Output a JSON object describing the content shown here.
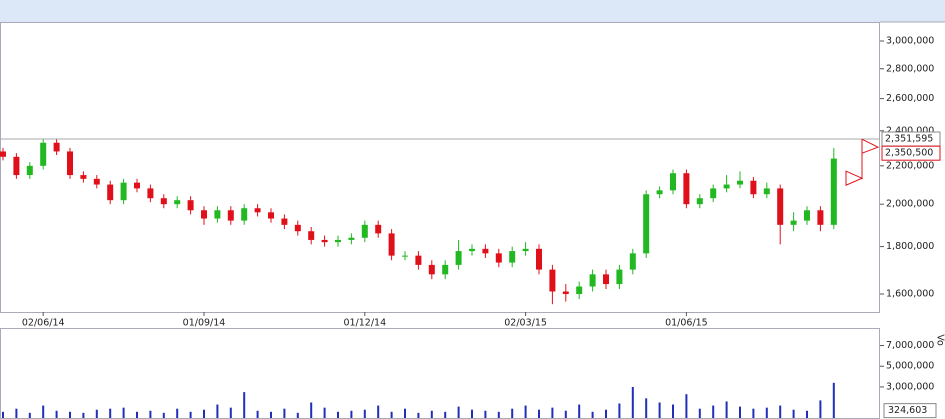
{
  "chart_data": {
    "type": "candlestick",
    "log": true,
    "categories": [
      null,
      null,
      null,
      "02/06/14",
      null,
      null,
      null,
      null,
      null,
      null,
      null,
      null,
      null,
      null,
      null,
      "01/09/14",
      null,
      null,
      null,
      null,
      null,
      null,
      null,
      null,
      null,
      null,
      null,
      "01/12/14",
      null,
      null,
      null,
      null,
      null,
      null,
      null,
      null,
      null,
      null,
      null,
      "02/03/15",
      null,
      null,
      null,
      null,
      null,
      null,
      null,
      null,
      null,
      null,
      null,
      "01/06/15",
      null,
      null,
      null,
      null,
      null,
      null,
      null,
      null,
      null,
      null,
      null
    ],
    "open": [
      2280000,
      2250000,
      2150000,
      2200000,
      2330000,
      2280000,
      2150000,
      2130000,
      2100000,
      2020000,
      2110000,
      2080000,
      2030000,
      2000000,
      2020000,
      1970000,
      1930000,
      1970000,
      1920000,
      1980000,
      1960000,
      1930000,
      1900000,
      1870000,
      1830000,
      1820000,
      1830000,
      1840000,
      1900000,
      1860000,
      1760000,
      1760000,
      1720000,
      1680000,
      1720000,
      1780000,
      1790000,
      1770000,
      1730000,
      1780000,
      1790000,
      1700000,
      1610000,
      1600000,
      1630000,
      1680000,
      1640000,
      1700000,
      1770000,
      2050000,
      2070000,
      2160000,
      2000000,
      2030000,
      2080000,
      2100000,
      2120000,
      2050000,
      2080000,
      1900000,
      1920000,
      1970000,
      1900000
    ],
    "high": [
      2300000,
      2270000,
      2220000,
      2350000,
      2350000,
      2300000,
      2170000,
      2150000,
      2120000,
      2130000,
      2130000,
      2100000,
      2050000,
      2040000,
      2040000,
      1990000,
      1990000,
      1990000,
      2000000,
      2000000,
      1980000,
      1950000,
      1920000,
      1890000,
      1850000,
      1850000,
      1860000,
      1920000,
      1920000,
      1880000,
      1780000,
      1780000,
      1740000,
      1740000,
      1830000,
      1810000,
      1810000,
      1790000,
      1800000,
      1820000,
      1810000,
      1720000,
      1640000,
      1650000,
      1700000,
      1700000,
      1720000,
      1790000,
      2070000,
      2090000,
      2180000,
      2180000,
      2050000,
      2100000,
      2150000,
      2170000,
      2140000,
      2110000,
      2100000,
      1960000,
      1990000,
      1990000,
      2300000
    ],
    "low": [
      2230000,
      2130000,
      2130000,
      2180000,
      2260000,
      2130000,
      2110000,
      2080000,
      2000000,
      2000000,
      2060000,
      2010000,
      1980000,
      1980000,
      1950000,
      1900000,
      1910000,
      1900000,
      1900000,
      1940000,
      1910000,
      1880000,
      1850000,
      1810000,
      1800000,
      1800000,
      1810000,
      1820000,
      1840000,
      1740000,
      1740000,
      1700000,
      1660000,
      1660000,
      1700000,
      1760000,
      1750000,
      1710000,
      1710000,
      1760000,
      1680000,
      1560000,
      1570000,
      1580000,
      1610000,
      1620000,
      1620000,
      1680000,
      1750000,
      2030000,
      2050000,
      1980000,
      1980000,
      2010000,
      2060000,
      2080000,
      2030000,
      2030000,
      1810000,
      1870000,
      1900000,
      1870000,
      1880000
    ],
    "close": [
      2250000,
      2150000,
      2200000,
      2330000,
      2280000,
      2150000,
      2130000,
      2100000,
      2020000,
      2110000,
      2080000,
      2030000,
      2000000,
      2020000,
      1970000,
      1930000,
      1970000,
      1920000,
      1980000,
      1960000,
      1930000,
      1900000,
      1870000,
      1830000,
      1820000,
      1830000,
      1840000,
      1900000,
      1860000,
      1760000,
      1760000,
      1720000,
      1680000,
      1720000,
      1780000,
      1790000,
      1770000,
      1730000,
      1780000,
      1790000,
      1700000,
      1610000,
      1600000,
      1630000,
      1680000,
      1640000,
      1700000,
      1770000,
      2050000,
      2070000,
      2160000,
      2000000,
      2030000,
      2080000,
      2100000,
      2120000,
      2050000,
      2080000,
      1900000,
      1920000,
      1970000,
      1900000,
      2240000
    ],
    "up_color": "#22b822",
    "down_color": "#e0101a",
    "ylim": [
      1530000,
      3145000
    ],
    "yticks": [
      {
        "value": 3000000,
        "label": "3,000,000"
      },
      {
        "value": 2800000,
        "label": "2,800,000"
      },
      {
        "value": 2600000,
        "label": "2,600,000"
      },
      {
        "value": 2400000,
        "label": "2,400,000"
      },
      {
        "value": 2200000,
        "label": "2,200,000"
      },
      {
        "value": 2000000,
        "label": "2,000,000"
      },
      {
        "value": 1800000,
        "label": "1,800,000"
      },
      {
        "value": 1600000,
        "label": "1,600,000"
      }
    ],
    "reference_line": {
      "value": 2351595,
      "label": "2,351,595"
    },
    "price_marker": {
      "value": 2350500,
      "label": "2,350,500",
      "color": "#e0101a"
    },
    "volume": {
      "label": "Vo",
      "color": "#1f2fb8",
      "ylim": [
        0,
        8500000
      ],
      "yticks": [
        {
          "value": 7000000,
          "label": "7,000,000"
        },
        {
          "value": 5000000,
          "label": "5,000,000"
        },
        {
          "value": 3000000,
          "label": "3,000,000"
        }
      ],
      "values": [
        600000,
        900000,
        500000,
        1200000,
        700000,
        600000,
        500000,
        800000,
        900000,
        1000000,
        600000,
        700000,
        500000,
        900000,
        600000,
        800000,
        1300000,
        1000000,
        2500000,
        700000,
        600000,
        900000,
        500000,
        1500000,
        1000000,
        600000,
        700000,
        800000,
        1200000,
        600000,
        900000,
        500000,
        700000,
        600000,
        1100000,
        800000,
        700000,
        600000,
        900000,
        1200000,
        800000,
        1000000,
        700000,
        1300000,
        600000,
        800000,
        1400000,
        3000000,
        1900000,
        1500000,
        1300000,
        2300000,
        900000,
        1200000,
        1600000,
        1100000,
        900000,
        1000000,
        1200000,
        800000,
        700000,
        1700000,
        3400000
      ],
      "last": {
        "value": 324603,
        "label": "324,603"
      }
    }
  }
}
